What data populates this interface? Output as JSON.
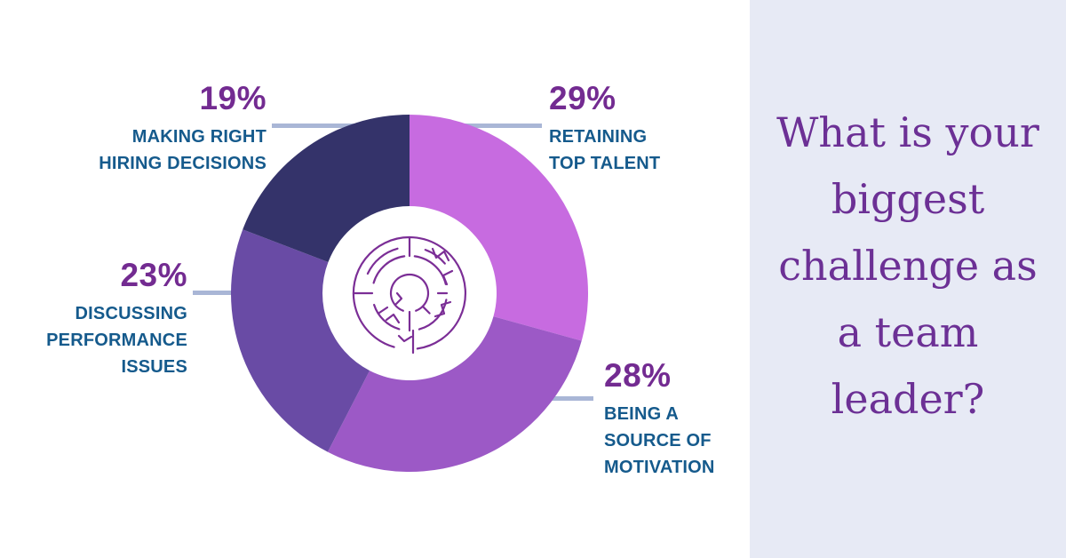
{
  "chart_data": {
    "type": "pie",
    "subtype": "donut",
    "title": "",
    "order": "clockwise-from-top",
    "segments": [
      {
        "percent_label": "29%",
        "value": 29,
        "color": "#C76BE0",
        "label": "RETAINING TOP TALENT",
        "lines": [
          "RETAINING",
          "TOP TALENT"
        ]
      },
      {
        "percent_label": "28%",
        "value": 28,
        "color": "#9C59C6",
        "label": "BEING A SOURCE OF MOTIVATION",
        "lines": [
          "BEING A",
          "SOURCE OF",
          "MOTIVATION"
        ]
      },
      {
        "percent_label": "23%",
        "value": 23,
        "color": "#694BA5",
        "label": "DISCUSSING PERFORMANCE ISSUES",
        "lines": [
          "DISCUSSING",
          "PERFORMANCE",
          "ISSUES"
        ]
      },
      {
        "percent_label": "19%",
        "value": 19,
        "color": "#34336A",
        "label": "MAKING RIGHT HIRING DECISIONS",
        "lines": [
          "MAKING RIGHT",
          "HIRING DECISIONS"
        ]
      }
    ],
    "legend_position": "callouts-around-donut",
    "center_icon": "maze-icon"
  },
  "side_panel": {
    "question": "What is your biggest challenge as a team leader?",
    "lines": [
      "What is your",
      "biggest",
      "challenge as",
      "a team",
      "leader?"
    ]
  },
  "colors": {
    "percent_color": "#732B91",
    "category_color": "#155A8C",
    "line_color": "#A9B6D6",
    "panel_bg": "#E7EAF5",
    "question_color": "#6C3095",
    "maze_color": "#7B2E96",
    "background": "#FFFFFF"
  }
}
